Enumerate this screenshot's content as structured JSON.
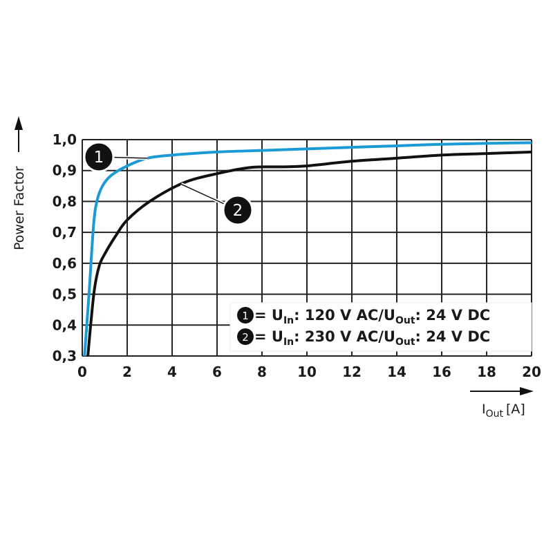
{
  "chart_data": {
    "type": "line",
    "title": "",
    "xlabel": "I",
    "xlabel_sub": "Out",
    "xlabel_unit": "[A]",
    "ylabel": "Power Factor",
    "xlim": [
      0,
      20
    ],
    "ylim": [
      0.3,
      1.0
    ],
    "grid": true,
    "x_ticks": [
      "0",
      "2",
      "4",
      "6",
      "8",
      "10",
      "12",
      "14",
      "16",
      "18",
      "20"
    ],
    "y_ticks": [
      "0,3",
      "0,4",
      "0,5",
      "0,6",
      "0,7",
      "0,8",
      "0,9",
      "1,0"
    ],
    "series": [
      {
        "name": "1",
        "color": "#1a9ad6",
        "x": [
          0.1,
          0.3,
          0.5,
          0.65,
          0.9,
          1.3,
          2.0,
          2.9,
          4,
          6,
          8,
          10,
          12,
          14,
          16,
          18,
          20
        ],
        "y": [
          0.3,
          0.5,
          0.72,
          0.8,
          0.85,
          0.885,
          0.915,
          0.94,
          0.95,
          0.96,
          0.965,
          0.97,
          0.975,
          0.98,
          0.985,
          0.988,
          0.99
        ]
      },
      {
        "name": "2",
        "color": "#111111",
        "x": [
          0.25,
          0.4,
          0.55,
          0.75,
          1.0,
          1.5,
          2.0,
          3.0,
          4.5,
          6,
          7.5,
          9,
          10,
          12,
          14,
          16,
          18,
          20
        ],
        "y": [
          0.3,
          0.42,
          0.52,
          0.59,
          0.63,
          0.69,
          0.74,
          0.8,
          0.86,
          0.89,
          0.91,
          0.912,
          0.915,
          0.93,
          0.94,
          0.95,
          0.955,
          0.96
        ]
      }
    ],
    "callouts": [
      {
        "label": "1",
        "series": "1",
        "at_x": 2.9
      },
      {
        "label": "2",
        "series": "2",
        "at_x": 4.4
      }
    ],
    "legend": {
      "placement": "bottom-right",
      "entries": [
        {
          "marker": "1",
          "eq": " = U",
          "sub1": "In",
          "mid": ": 120 V AC/U",
          "sub2": "Out",
          "end": ": 24 V DC"
        },
        {
          "marker": "2",
          "eq": " = U",
          "sub1": "In",
          "mid": ": 230 V AC/U",
          "sub2": "Out",
          "end": ": 24 V DC"
        }
      ]
    }
  }
}
